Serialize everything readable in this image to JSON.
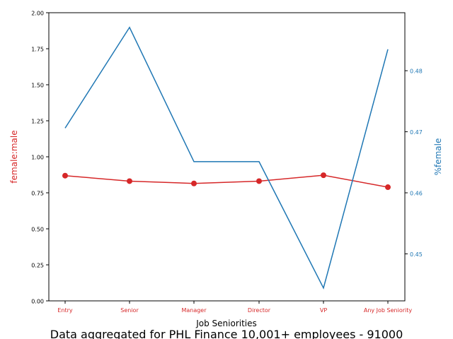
{
  "chart_data": {
    "type": "line",
    "title": "",
    "caption": "Data aggregated for PHL Finance 10,001+ employees - 91000",
    "xlabel": "Job Seniorities",
    "categories": [
      "Entry",
      "Senior",
      "Manager",
      "Director",
      "VP",
      "Any Job Seniority"
    ],
    "left_axis": {
      "label": "female:male",
      "ylim": [
        0,
        2.0
      ],
      "ticks": [
        "0.00",
        "0.25",
        "0.50",
        "0.75",
        "1.00",
        "1.25",
        "1.50",
        "1.75",
        "2.00"
      ],
      "color": "#d62728"
    },
    "right_axis": {
      "label": "%female",
      "ylim": [
        0.4423,
        0.4895
      ],
      "ticks": [
        "0.45",
        "0.46",
        "0.47",
        "0.48"
      ],
      "color": "#1f77b4"
    },
    "series": [
      {
        "axis": "left",
        "color": "#d62728",
        "marker": "circle",
        "values": [
          0.869,
          0.831,
          0.815,
          0.831,
          0.872,
          0.789
        ]
      },
      {
        "axis": "right",
        "color": "#1f77b4",
        "marker": "none",
        "values": [
          0.4706,
          0.4871,
          0.4651,
          0.4651,
          0.4444,
          0.4835
        ]
      }
    ],
    "grid": false
  }
}
